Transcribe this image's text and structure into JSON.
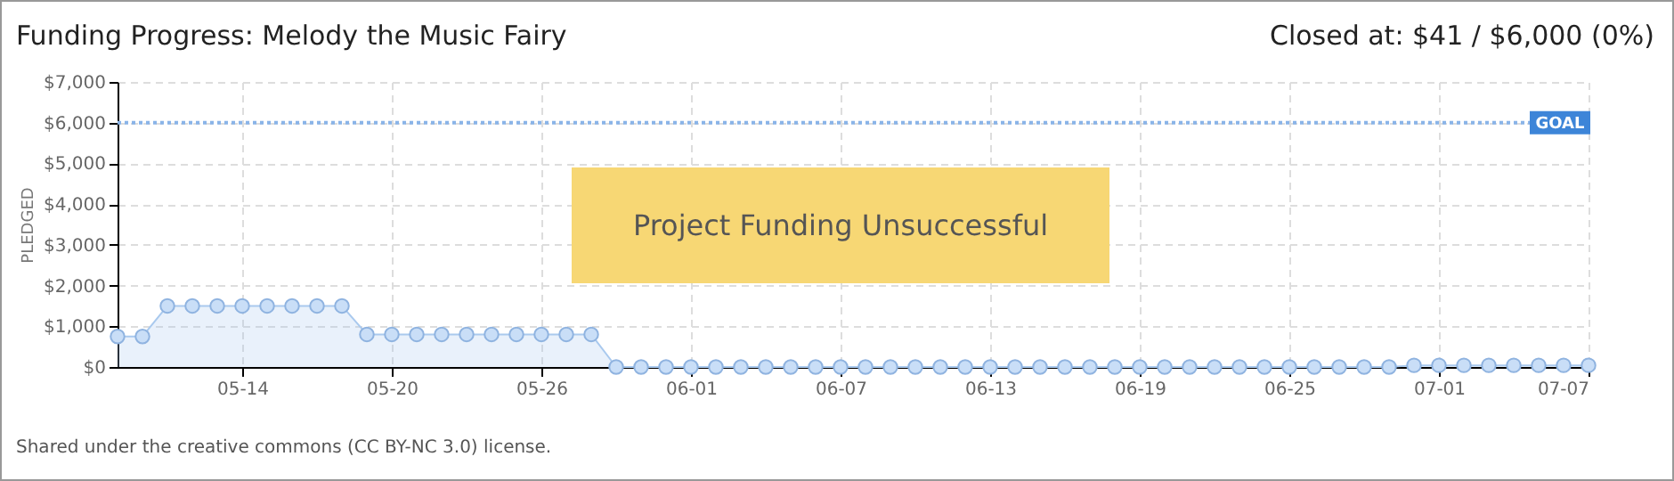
{
  "chart_data": {
    "type": "area",
    "title": "Funding Progress: Melody the Music Fairy",
    "subtitle": "Closed at: $41 / $6,000 (0%)",
    "ylabel": "PLEDGED",
    "annotations": [
      "Project Funding Unsuccessful",
      "Shared under the creative commons (CC BY-NC 3.0) license."
    ],
    "x": [
      "--05-09",
      "--05-10",
      "--05-11",
      "--05-12",
      "--05-13",
      "--05-14",
      "--05-15",
      "--05-16",
      "--05-17",
      "--05-18",
      "--05-19",
      "--05-20",
      "--05-21",
      "--05-22",
      "--05-23",
      "--05-24",
      "--05-25",
      "--05-26",
      "--05-27",
      "--05-28",
      "--05-29",
      "--05-30",
      "--05-31",
      "--06-01",
      "--06-02",
      "--06-03",
      "--06-04",
      "--06-05",
      "--06-06",
      "--06-07",
      "--06-08",
      "--06-09",
      "--06-10",
      "--06-11",
      "--06-12",
      "--06-13",
      "--06-14",
      "--06-15",
      "--06-16",
      "--06-17",
      "--06-18",
      "--06-19",
      "--06-20",
      "--06-21",
      "--06-22",
      "--06-23",
      "--06-24",
      "--06-25",
      "--06-26",
      "--06-27",
      "--06-28",
      "--06-29",
      "--06-30",
      "--07-01",
      "--07-02",
      "--07-03",
      "--07-04",
      "--07-05",
      "--07-06",
      "--07-07"
    ],
    "series": [
      {
        "color": "#a9c9ee",
        "values": [
          750,
          750,
          1500,
          1500,
          1500,
          1500,
          1500,
          1500,
          1500,
          1500,
          800,
          800,
          800,
          800,
          800,
          800,
          800,
          800,
          800,
          800,
          0,
          0,
          0,
          0,
          0,
          0,
          0,
          0,
          0,
          0,
          0,
          0,
          0,
          0,
          0,
          0,
          0,
          0,
          0,
          0,
          0,
          0,
          0,
          0,
          0,
          0,
          0,
          0,
          0,
          0,
          0,
          0,
          41,
          41,
          41,
          41,
          41,
          41,
          41,
          41
        ]
      }
    ],
    "xlim": [
      "--05-09",
      "--07-07"
    ],
    "xticks": [
      {
        "value": "--05-14",
        "label": "05-14"
      },
      {
        "value": "--05-20",
        "label": "05-20"
      },
      {
        "value": "--05-26",
        "label": "05-26"
      },
      {
        "value": "--06-01",
        "label": "06-01"
      },
      {
        "value": "--06-07",
        "label": "06-07"
      },
      {
        "value": "--06-13",
        "label": "06-13"
      },
      {
        "value": "--06-19",
        "label": "06-19"
      },
      {
        "value": "--06-25",
        "label": "06-25"
      },
      {
        "value": "--07-01",
        "label": "07-01"
      },
      {
        "value": "--07-07",
        "label": "07-07"
      }
    ],
    "ylim": [
      0,
      7000
    ],
    "yticks": [
      {
        "value": 0,
        "label": "$0"
      },
      {
        "value": 1000,
        "label": "$1,000"
      },
      {
        "value": 2000,
        "label": "$2,000"
      },
      {
        "value": 3000,
        "label": "$3,000"
      },
      {
        "value": 4000,
        "label": "$4,000"
      },
      {
        "value": 5000,
        "label": "$5,000"
      },
      {
        "value": 6000,
        "label": "$6,000"
      },
      {
        "value": 7000,
        "label": "$7,000"
      }
    ],
    "ref_lines": [
      {
        "axis": "y",
        "value": 6000,
        "label": "GOAL",
        "color": "#8ab4e8",
        "line_style": "dotted"
      }
    ],
    "grid": true,
    "marker": "circle"
  }
}
